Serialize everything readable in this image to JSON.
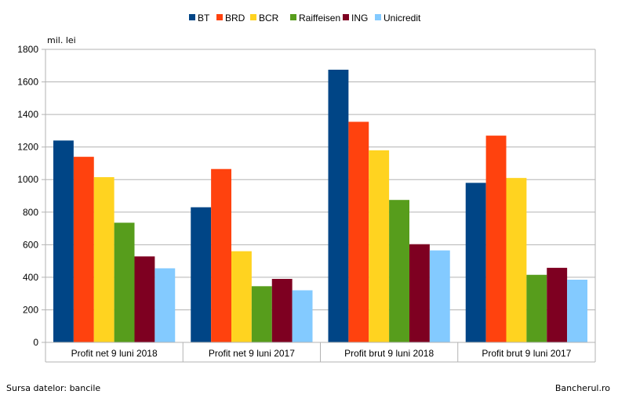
{
  "chart_data": {
    "type": "bar",
    "ylabel": "mil. lei",
    "ylim": [
      0,
      1800
    ],
    "yticks": [
      0,
      200,
      400,
      600,
      800,
      1000,
      1200,
      1400,
      1600,
      1800
    ],
    "grid": true,
    "legend_position": "top",
    "categories": [
      "Profit net 9 luni 2018",
      "Profit net 9 luni 2017",
      "Profit brut 9 luni 2018",
      "Profit brut 9 luni 2017"
    ],
    "series": [
      {
        "name": "BT",
        "color": "#004586",
        "values": [
          1240,
          830,
          1675,
          980
        ]
      },
      {
        "name": "BRD",
        "color": "#ff420e",
        "values": [
          1140,
          1065,
          1355,
          1270
        ]
      },
      {
        "name": "BCR",
        "color": "#ffd320",
        "values": [
          1015,
          560,
          1180,
          1010
        ]
      },
      {
        "name": "Raiffeisen",
        "color": "#579d1c",
        "values": [
          735,
          345,
          875,
          415
        ]
      },
      {
        "name": "ING",
        "color": "#7e0021",
        "values": [
          528,
          390,
          603,
          458
        ]
      },
      {
        "name": "Unicredit",
        "color": "#83caff",
        "values": [
          455,
          320,
          565,
          385
        ]
      }
    ]
  },
  "footer": {
    "source": "Sursa datelor: bancile",
    "credit": "Bancherul.ro"
  }
}
